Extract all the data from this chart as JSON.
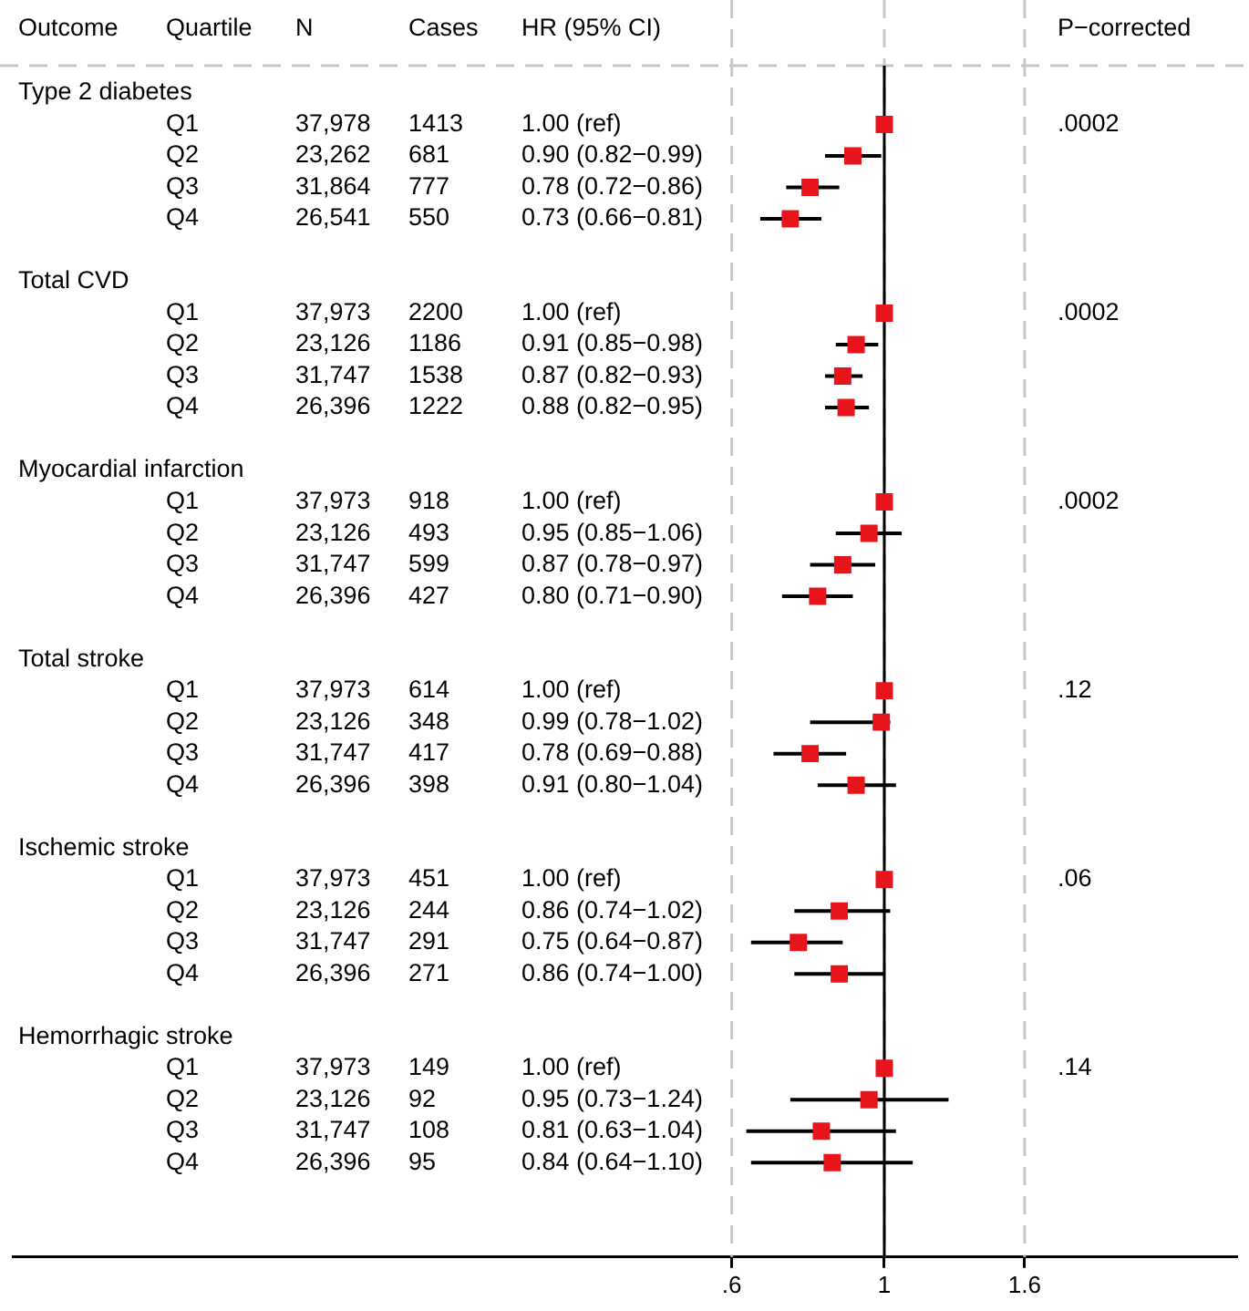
{
  "chart_data": {
    "type": "scatter",
    "orientation": "horizontal",
    "log": "x",
    "marker": "square",
    "color": "#e8141c",
    "grid": "x",
    "legend": false,
    "categories": [
      "Type 2 diabetes",
      "Q1",
      "Q2",
      "Q3",
      "Q4",
      null,
      "Total CVD",
      "Q1",
      "Q2",
      "Q3",
      "Q4",
      null,
      "Myocardial infarction",
      "Q1",
      "Q2",
      "Q3",
      "Q4",
      null,
      "Total stroke",
      "Q1",
      "Q2",
      "Q3",
      "Q4",
      null,
      "Ischemic stroke",
      "Q1",
      "Q2",
      "Q3",
      "Q4",
      null,
      "Hemorrhagic stroke",
      "Q1",
      "Q2",
      "Q3",
      "Q4"
    ],
    "values": [
      null,
      1.0,
      0.9,
      0.78,
      0.73,
      null,
      null,
      1.0,
      0.91,
      0.87,
      0.88,
      null,
      null,
      1.0,
      0.95,
      0.87,
      0.8,
      null,
      null,
      1.0,
      0.99,
      0.78,
      0.91,
      null,
      null,
      1.0,
      0.86,
      0.75,
      0.86,
      null,
      null,
      1.0,
      0.95,
      0.81,
      0.84
    ],
    "errors": [
      null,
      null,
      [
        0.82,
        0.99
      ],
      [
        0.72,
        0.86
      ],
      [
        0.66,
        0.81
      ],
      null,
      null,
      null,
      [
        0.85,
        0.98
      ],
      [
        0.82,
        0.93
      ],
      [
        0.82,
        0.95
      ],
      null,
      null,
      null,
      [
        0.85,
        1.06
      ],
      [
        0.78,
        0.97
      ],
      [
        0.71,
        0.9
      ],
      null,
      null,
      null,
      [
        0.78,
        1.02
      ],
      [
        0.69,
        0.88
      ],
      [
        0.8,
        1.04
      ],
      null,
      null,
      null,
      [
        0.74,
        1.02
      ],
      [
        0.64,
        0.87
      ],
      [
        0.74,
        1.0
      ],
      null,
      null,
      null,
      [
        0.73,
        1.24
      ],
      [
        0.63,
        1.04
      ],
      [
        0.64,
        1.1
      ]
    ],
    "xlim": [
      0.054,
      3.25
    ],
    "xticks": [
      {
        "value": 0.6,
        "label": ".6"
      },
      1,
      1.6
    ],
    "ref_lines": [
      {
        "axis": "x",
        "value": 1,
        "color": "#000000"
      }
    ],
    "annotations": [
      "Outcome",
      "Quartile",
      "N",
      "Cases",
      "HR (95% CI)",
      "P−corrected",
      "37,978",
      "1413",
      "1.00 (ref)",
      "23,262",
      "681",
      "0.90 (0.82−0.99)",
      "31,864",
      "777",
      "0.78 (0.72−0.86)",
      "26,541",
      "550",
      "0.73 (0.66−0.81)",
      "37,973",
      "2200",
      "1.00 (ref)",
      "23,126",
      "1186",
      "0.91 (0.85−0.98)",
      "31,747",
      "1538",
      "0.87 (0.82−0.93)",
      "26,396",
      "1222",
      "0.88 (0.82−0.95)",
      "37,973",
      "918",
      "1.00 (ref)",
      "23,126",
      "493",
      "0.95 (0.85−1.06)",
      "31,747",
      "599",
      "0.87 (0.78−0.97)",
      "26,396",
      "427",
      "0.80 (0.71−0.90)",
      "37,973",
      "614",
      "1.00 (ref)",
      "23,126",
      "348",
      "0.99 (0.78−1.02)",
      "31,747",
      "417",
      "0.78 (0.69−0.88)",
      "26,396",
      "398",
      "0.91 (0.80−1.04)",
      "37,973",
      "451",
      "1.00 (ref)",
      "23,126",
      "244",
      "0.86 (0.74−1.02)",
      "31,747",
      "291",
      "0.75 (0.64−0.87)",
      "26,396",
      "271",
      "0.86 (0.74−1.00)",
      "37,973",
      "149",
      "1.00 (ref)",
      "23,126",
      "92",
      "0.95 (0.73−1.24)",
      "31,747",
      "108",
      "0.81 (0.63−1.04)",
      "26,396",
      "95",
      "0.84 (0.64−1.10)",
      ".0002",
      ".0002",
      ".0002",
      ".12",
      ".06",
      ".14"
    ]
  }
}
